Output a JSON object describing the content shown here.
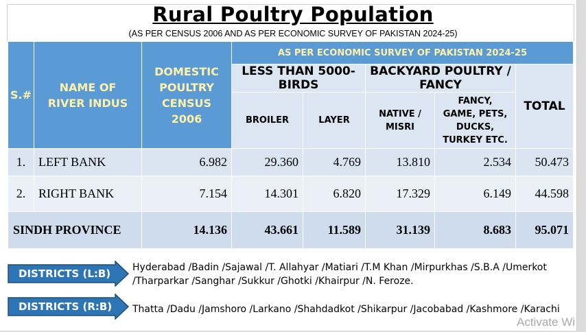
{
  "title": "Rural Poultry Population",
  "subtitle": "(AS PER CENSUS 2006 AND AS PER ECONOMIC SURVEY OF PAKISTAN 2024-25)",
  "table": {
    "headers": {
      "sn": "S.#",
      "name": "NAME OF RIVER INDUS",
      "census": "DOMESTIC POULTRY CENSUS 2006",
      "survey": "AS PER ECONOMIC SURVEY OF PAKISTAN 2024-25",
      "group1": "LESS THAN 5000-BIRDS",
      "group2": "BACKYARD POULTRY / FANCY",
      "total": "TOTAL",
      "broiler": "BROILER",
      "layer": "LAYER",
      "native": "NATIVE / MISRI",
      "fancy": "FANCY, GAME, PETS, DUCKS, TURKEY ETC."
    },
    "rows": [
      {
        "sn": "1.",
        "name": "LEFT BANK",
        "census": "6.982",
        "broiler": "29.360",
        "layer": "4.769",
        "native": "13.810",
        "fancy": "2.534",
        "total": "50.473"
      },
      {
        "sn": "2.",
        "name": "RIGHT BANK",
        "census": "7.154",
        "broiler": "14.301",
        "layer": "6.820",
        "native": "17.329",
        "fancy": "6.149",
        "total": "44.598"
      }
    ],
    "total_row": {
      "name": "SINDH PROVINCE",
      "census": "14.136",
      "broiler": "43.661",
      "layer": "11.589",
      "native": "31.139",
      "fancy": "8.683",
      "total": "95.071"
    }
  },
  "districts": {
    "lb_label": "DISTRICTS (L:B)",
    "lb_line1": "Hyderabad /Badin /Sajawal /T. Allahyar /Matiari /T.M Khan /Mirpurkhas /S.B.A /Umerkot",
    "lb_line2": "/Tharparkar /Sanghar /Sukkur /Ghotki /Khairpur /N. Feroze.",
    "rb_label": "DISTRICTS (R:B)",
    "rb_line1": "Thatta /Dadu /Jamshoro /Larkano /Shahdadkot /Shikarpur /Jacobabad /Kashmore /Karachi"
  },
  "watermark": "Activate Wi",
  "colors": {
    "header": "#5b9bd5",
    "header_text": "#fff2a8",
    "sub": "#dce6f2",
    "row": "#dbe5f1",
    "arrow": "#2e75b6"
  }
}
